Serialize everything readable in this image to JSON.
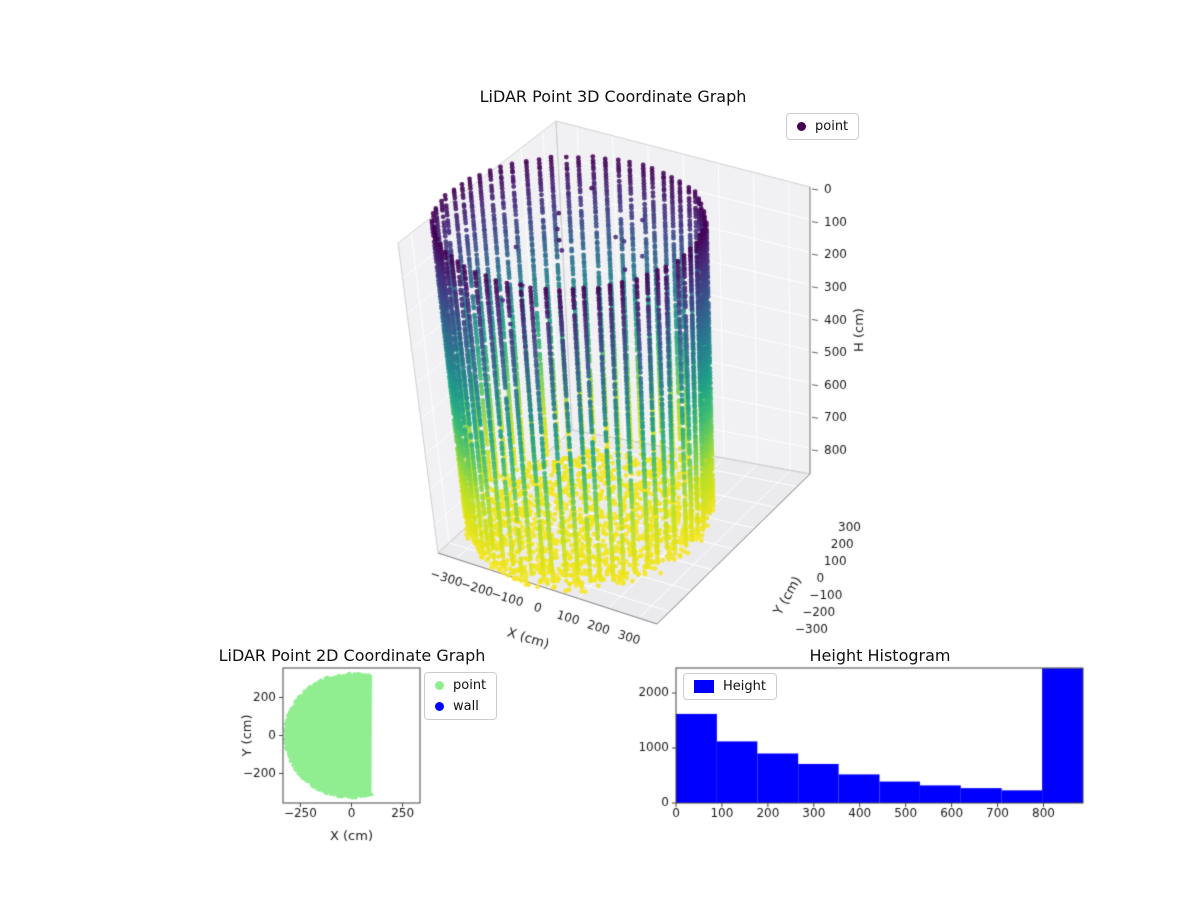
{
  "chart_data": [
    {
      "id": "plot3d",
      "type": "scatter3d",
      "title": "LiDAR Point 3D Coordinate Graph",
      "xlabel": "X (cm)",
      "ylabel": "Y (cm)",
      "zlabel": "H (cm)",
      "xticks": [
        -300,
        -200,
        -100,
        0,
        100,
        200,
        300
      ],
      "yticks": [
        300,
        200,
        100,
        0,
        -100,
        -200,
        -300
      ],
      "zticks": [
        0,
        100,
        200,
        300,
        400,
        500,
        600,
        700,
        800
      ],
      "xlim": [
        -360,
        360
      ],
      "ylim": [
        -360,
        360
      ],
      "zlim": [
        0,
        880
      ],
      "zaxis_inverted": true,
      "grid": true,
      "legend": [
        {
          "label": "point",
          "color": "#440154"
        }
      ],
      "legend_position": "upper right",
      "colormap": "viridis",
      "colormap_stops": [
        [
          0,
          "#440154"
        ],
        [
          0.1,
          "#482878"
        ],
        [
          0.2,
          "#3e4989"
        ],
        [
          0.3,
          "#31688e"
        ],
        [
          0.4,
          "#26828e"
        ],
        [
          0.5,
          "#1f9e89"
        ],
        [
          0.6,
          "#35b779"
        ],
        [
          0.7,
          "#6ece58"
        ],
        [
          0.8,
          "#b5de2b"
        ],
        [
          0.9,
          "#d8e219"
        ],
        [
          1,
          "#fde725"
        ]
      ],
      "point_cloud": {
        "shape": "cylinder-room-scan",
        "color_by": "height",
        "center_xy": [
          -60,
          -60
        ],
        "radius_cm": 330,
        "wall_height_cm": 848,
        "wall_columns": 64,
        "column_step_cm": 9,
        "floor_points": 1400,
        "floor_height_cm": 855,
        "noise_points": 14
      }
    },
    {
      "id": "plot2d",
      "type": "scatter2d",
      "title": "LiDAR Point 2D Coordinate Graph",
      "xlabel": "X (cm)",
      "ylabel": "Y (cm)",
      "xticks": [
        -250,
        0,
        250
      ],
      "yticks": [
        200,
        0,
        -200
      ],
      "xlim": [
        -335,
        335
      ],
      "ylim": [
        -355,
        355
      ],
      "legend": [
        {
          "label": "point",
          "color": "#90ee90"
        },
        {
          "label": "wall",
          "color": "#0000ff"
        }
      ],
      "legend_position": "outside upper right",
      "region": {
        "type": "clipped-disk",
        "center": [
          0,
          0
        ],
        "radius_cm": 325,
        "x_max_cm": 100,
        "color": "#90ee90"
      }
    },
    {
      "id": "histogram",
      "type": "bar",
      "title": "Height Histogram",
      "legend": [
        {
          "label": "Height",
          "color": "#0000ff"
        }
      ],
      "legend_position": "upper left",
      "bin_edges": [
        0,
        89,
        177,
        266,
        354,
        443,
        531,
        620,
        709,
        797,
        886
      ],
      "values": [
        1620,
        1120,
        900,
        710,
        520,
        390,
        320,
        270,
        230,
        2450
      ],
      "xticks": [
        0,
        100,
        200,
        300,
        400,
        500,
        600,
        700,
        800
      ],
      "yticks": [
        0,
        1000,
        2000
      ],
      "xlim": [
        0,
        886
      ],
      "ylim": [
        0,
        2455
      ],
      "bar_color": "#0000ff"
    }
  ]
}
